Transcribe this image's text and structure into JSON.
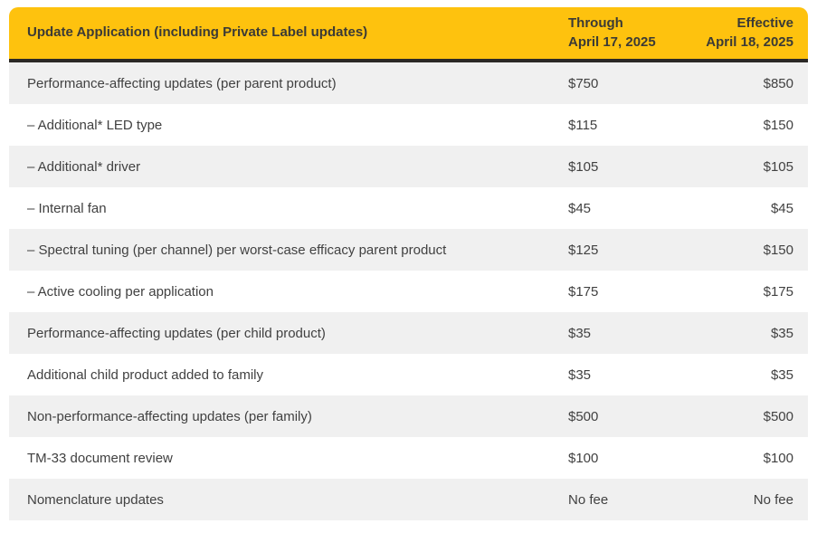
{
  "table": {
    "header": {
      "title": "Update Application (including Private Label updates)",
      "through_line1": "Through",
      "through_line2": "April 17, 2025",
      "effective_line1": "Effective",
      "effective_line2": "April 18, 2025"
    },
    "rows": [
      {
        "label": "Performance-affecting updates (per parent product)",
        "through": "$750",
        "effective": "$850"
      },
      {
        "label": "– Additional* LED type",
        "through": "$115",
        "effective": "$150"
      },
      {
        "label": "– Additional* driver",
        "through": "$105",
        "effective": "$105"
      },
      {
        "label": "– Internal fan",
        "through": "$45",
        "effective": "$45"
      },
      {
        "label": "– Spectral tuning (per channel) per worst-case efficacy parent product",
        "through": "$125",
        "effective": "$150"
      },
      {
        "label": "– Active cooling per application",
        "through": "$175",
        "effective": "$175"
      },
      {
        "label": "Performance-affecting updates (per child product)",
        "through": "$35",
        "effective": "$35"
      },
      {
        "label": "Additional child product added to family",
        "through": "$35",
        "effective": "$35"
      },
      {
        "label": "Non-performance-affecting updates (per family)",
        "through": "$500",
        "effective": "$500"
      },
      {
        "label": "TM-33 document review",
        "through": "$100",
        "effective": "$100"
      },
      {
        "label": "Nomenclature updates",
        "through": "No fee",
        "effective": "No fee"
      }
    ],
    "colors": {
      "header_bg": "#FEC20E",
      "header_text": "#3B3A36",
      "divider": "#2B2926",
      "row_alt_bg": "#F0F0F0",
      "row_bg": "#FFFFFF",
      "body_text": "#414141"
    }
  }
}
